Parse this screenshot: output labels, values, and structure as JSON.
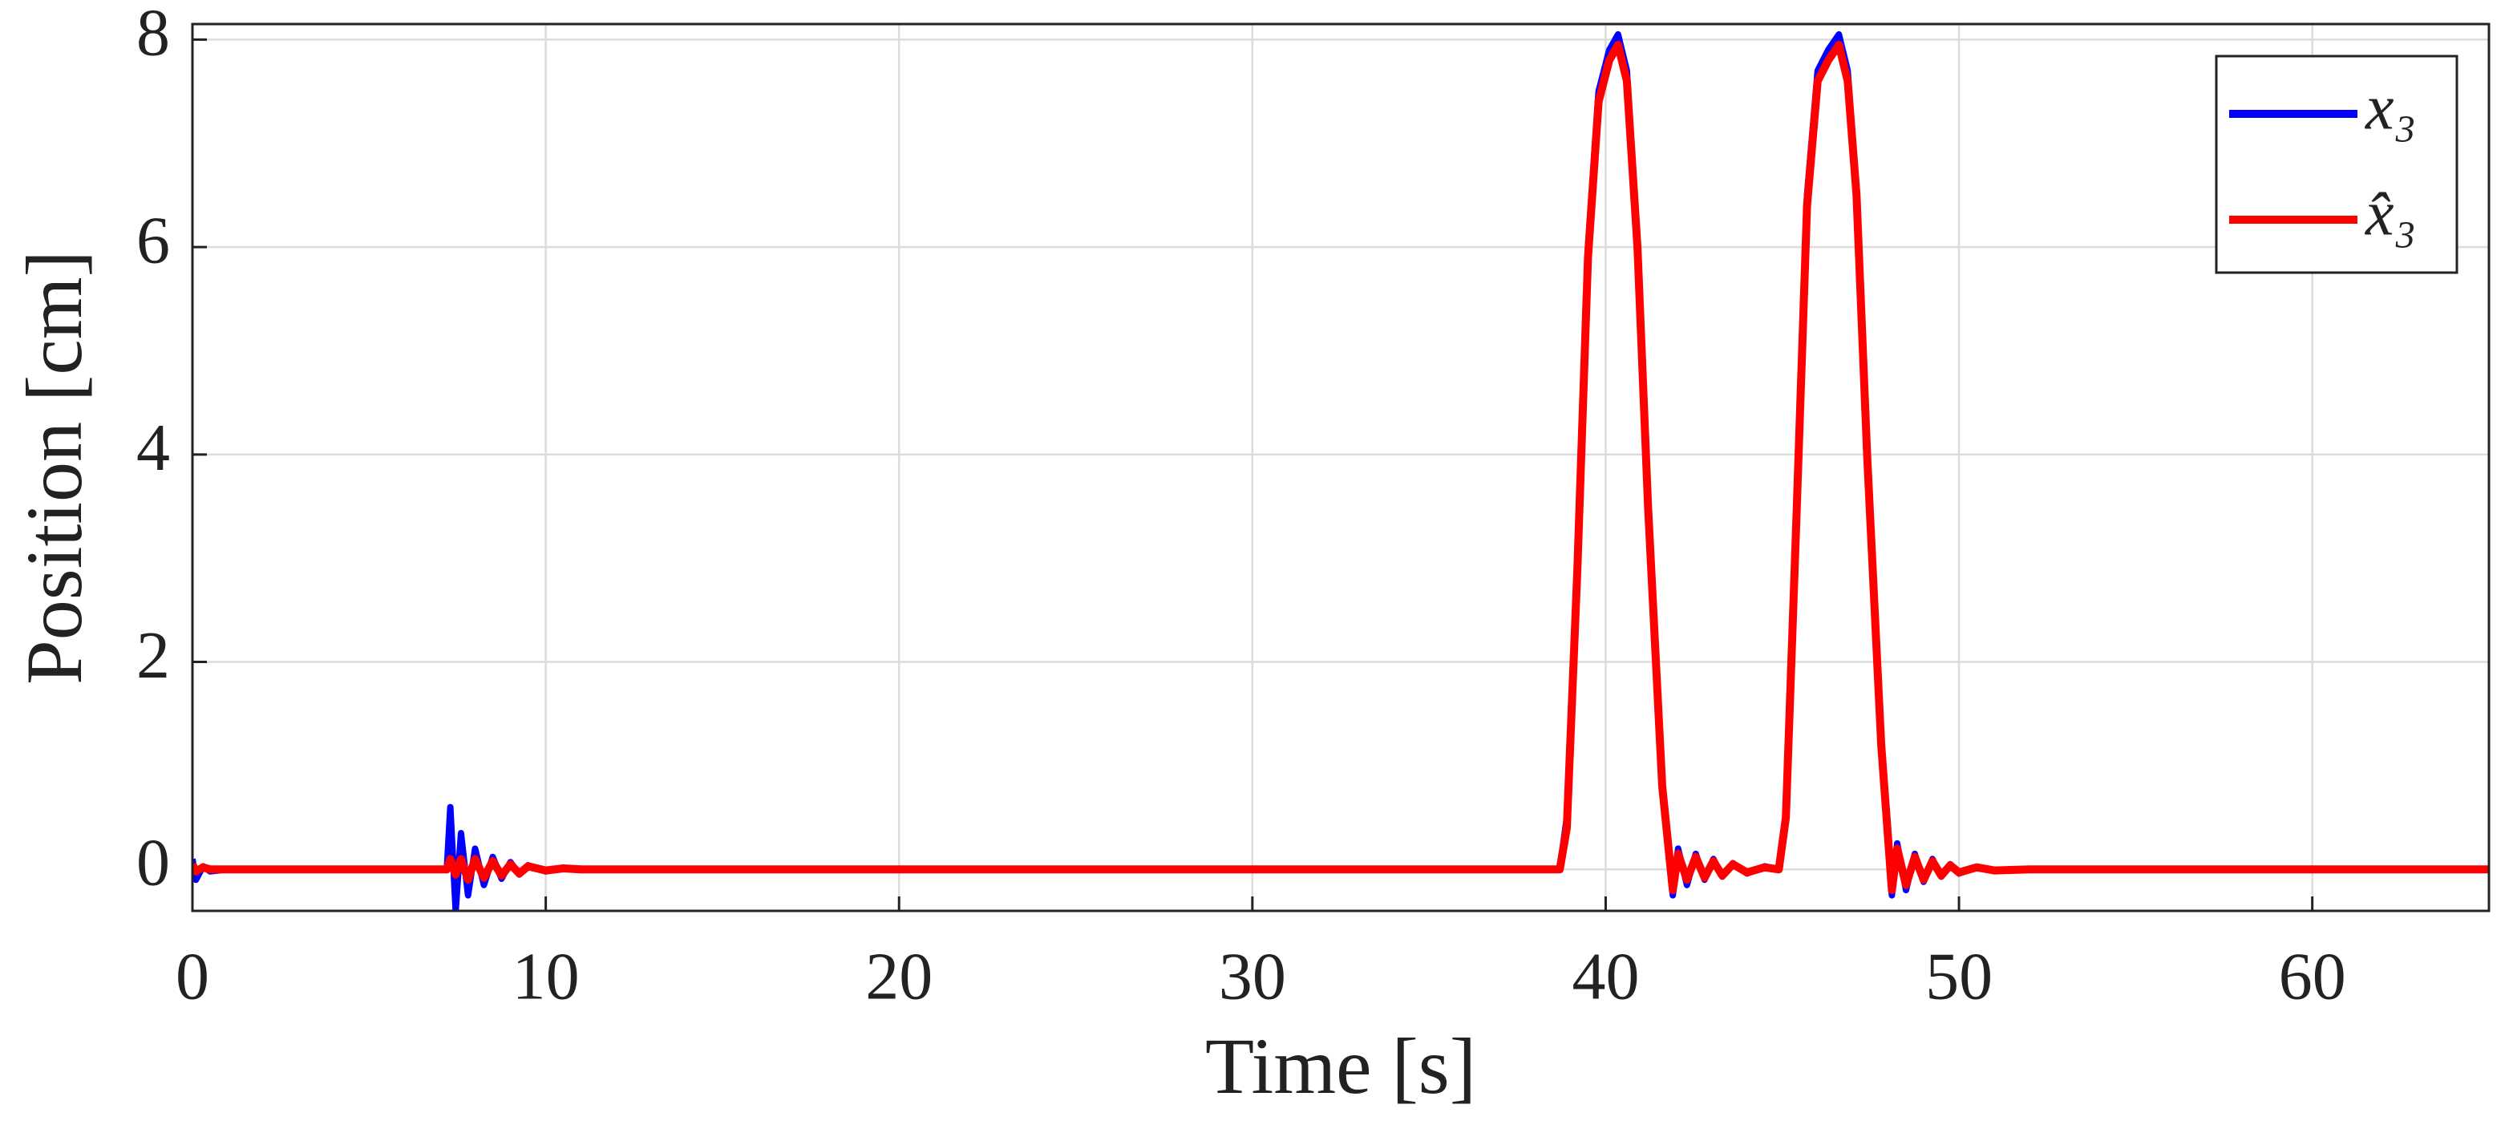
{
  "chart_data": {
    "type": "line",
    "xlabel": "Time [s]",
    "ylabel": "Position [cm]",
    "x": [
      0,
      0.1,
      0.3,
      0.5,
      1,
      2,
      5,
      7.2,
      7.3,
      7.45,
      7.6,
      7.8,
      8.0,
      8.25,
      8.5,
      8.75,
      9.0,
      9.25,
      9.5,
      10,
      10.5,
      11,
      12,
      15,
      20,
      30,
      38.7,
      38.9,
      39.2,
      39.5,
      39.8,
      40.1,
      40.35,
      40.6,
      40.9,
      41.2,
      41.6,
      41.9,
      42.05,
      42.3,
      42.55,
      42.8,
      43.05,
      43.3,
      43.6,
      44,
      44.5,
      44.9,
      45.1,
      45.4,
      45.7,
      46,
      46.3,
      46.6,
      46.85,
      47.1,
      47.4,
      47.8,
      48.1,
      48.25,
      48.5,
      48.75,
      49,
      49.25,
      49.5,
      49.75,
      50,
      50.5,
      51,
      52,
      55,
      60,
      65
    ],
    "series": [
      {
        "name": "x₃",
        "color": "#0000ff",
        "values": [
          0.1,
          -0.1,
          0.03,
          -0.02,
          0,
          0,
          0,
          0,
          0.6,
          -0.4,
          0.35,
          -0.25,
          0.2,
          -0.15,
          0.12,
          -0.09,
          0.07,
          -0.05,
          0.04,
          -0.02,
          0.01,
          0,
          0,
          0,
          0,
          0,
          0,
          0.5,
          3,
          6,
          7.5,
          7.9,
          8.05,
          7.7,
          6,
          3.5,
          0.8,
          -0.25,
          0.2,
          -0.15,
          0.15,
          -0.1,
          0.1,
          -0.07,
          0.06,
          -0.04,
          0.03,
          0,
          0.5,
          3.5,
          6.5,
          7.7,
          7.9,
          8.05,
          7.7,
          6.5,
          4,
          1.2,
          -0.25,
          0.25,
          -0.2,
          0.15,
          -0.12,
          0.1,
          -0.07,
          0.05,
          -0.04,
          0.02,
          -0.01,
          0,
          0,
          0,
          0
        ]
      },
      {
        "name": "x̂₃",
        "color": "#ff0000",
        "values": [
          0.05,
          -0.02,
          0.02,
          0,
          0,
          0,
          0,
          0,
          0.1,
          -0.05,
          0.1,
          -0.1,
          0.1,
          -0.08,
          0.08,
          -0.06,
          0.05,
          -0.04,
          0.03,
          -0.01,
          0.01,
          0,
          0,
          0,
          0,
          0,
          0,
          0.4,
          2.9,
          5.9,
          7.4,
          7.8,
          7.95,
          7.6,
          6,
          3.5,
          0.8,
          -0.2,
          0.15,
          -0.1,
          0.12,
          -0.08,
          0.08,
          -0.06,
          0.05,
          -0.03,
          0.02,
          0,
          0.5,
          3.4,
          6.4,
          7.6,
          7.8,
          7.95,
          7.6,
          6.5,
          4,
          1.2,
          -0.2,
          0.2,
          -0.15,
          0.12,
          -0.1,
          0.08,
          -0.06,
          0.04,
          -0.03,
          0.02,
          -0.01,
          0,
          0,
          0,
          0
        ]
      }
    ],
    "xlim": [
      0,
      65
    ],
    "xticks": [
      0,
      10,
      20,
      30,
      40,
      50,
      60
    ],
    "ylim": [
      -0.4,
      8.15
    ],
    "yticks": [
      0,
      2,
      4,
      6,
      8
    ],
    "grid": true,
    "legend": "northeast"
  }
}
